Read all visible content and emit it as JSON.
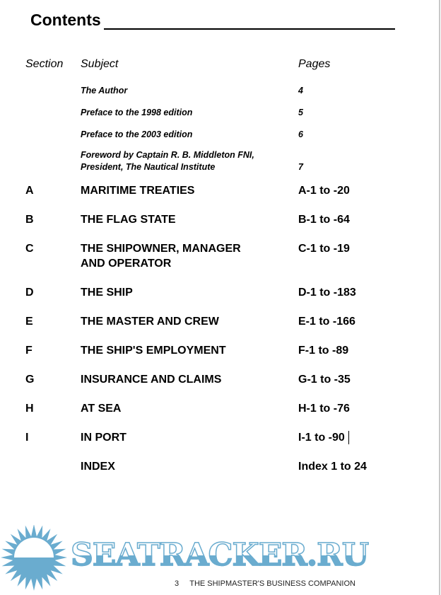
{
  "title": "Contents",
  "headers": {
    "section": "Section",
    "subject": "Subject",
    "pages": "Pages"
  },
  "front_matter": [
    {
      "subject": "The Author",
      "pages": "4"
    },
    {
      "subject": "Preface to the 1998 edition",
      "pages": "5"
    },
    {
      "subject": "Preface to the 2003 edition",
      "pages": "6"
    },
    {
      "subject": "Foreword by Captain R. B. Middleton FNI,",
      "subject2": "President, The Nautical Institute",
      "pages": "7"
    }
  ],
  "sections": [
    {
      "section": "A",
      "subject": "MARITIME TREATIES",
      "pages": "A-1 to -20"
    },
    {
      "section": "B",
      "subject": "THE FLAG STATE",
      "pages": "B-1 to -64"
    },
    {
      "section": "C",
      "subject": "THE SHIPOWNER, MANAGER",
      "subject2": "AND OPERATOR",
      "pages": "C-1 to -19"
    },
    {
      "section": "D",
      "subject": "THE SHIP",
      "pages": "D-1 to -183"
    },
    {
      "section": "E",
      "subject": "THE MASTER AND CREW",
      "pages": "E-1 to -166"
    },
    {
      "section": "F",
      "subject": "THE SHIP'S EMPLOYMENT",
      "pages": "F-1 to -89"
    },
    {
      "section": "G",
      "subject": "INSURANCE AND CLAIMS",
      "pages": "G-1 to -35"
    },
    {
      "section": "H",
      "subject": "AT SEA",
      "pages": "H-1 to -76"
    },
    {
      "section": "I",
      "subject": "IN PORT",
      "pages": "I-1 to -90"
    },
    {
      "section": "",
      "subject": "INDEX",
      "pages": "Index 1 to 24"
    }
  ],
  "footer": {
    "page_number": "3",
    "book_title": "THE SHIPMASTER'S BUSINESS COMPANION"
  },
  "watermark": {
    "text": "SEATRACKER.RU",
    "color": "#6aaccf"
  }
}
